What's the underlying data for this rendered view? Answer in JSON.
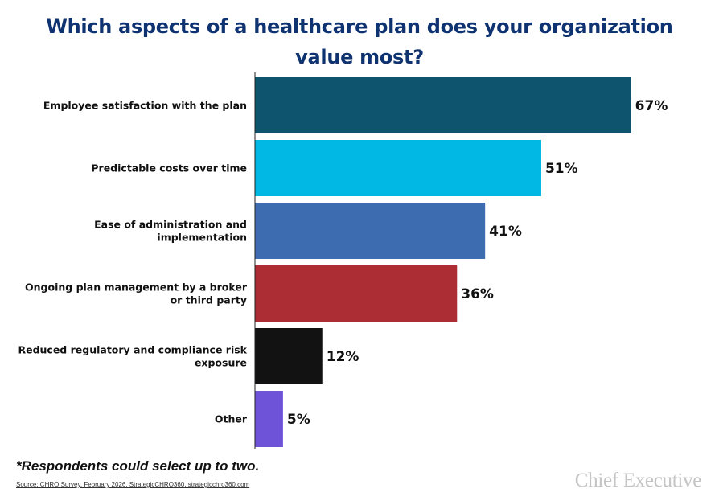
{
  "chart_data": {
    "type": "bar",
    "orientation": "horizontal",
    "title": "Which aspects of a healthcare plan does your organization value most?",
    "categories": [
      "Employee satisfaction with the plan",
      "Predictable costs over time",
      "Ease of administration and implementation",
      "Ongoing plan management by a broker or third party",
      "Reduced regulatory and compliance risk exposure",
      "Other"
    ],
    "category_lines": [
      [
        "Employee satisfaction with the plan"
      ],
      [
        "Predictable costs over time"
      ],
      [
        "Ease of administration and",
        "implementation"
      ],
      [
        "Ongoing plan management by a broker",
        "or third party"
      ],
      [
        "Reduced regulatory and compliance risk",
        "exposure"
      ],
      [
        "Other"
      ]
    ],
    "values": [
      67,
      51,
      41,
      36,
      12,
      5
    ],
    "value_labels": [
      "67%",
      "51%",
      "41%",
      "36%",
      "12%",
      "5%"
    ],
    "colors": [
      "#0e546e",
      "#00b8e3",
      "#3d6db0",
      "#ac2e34",
      "#121212",
      "#6e53d8"
    ],
    "xlim": [
      0,
      100
    ],
    "grid": false,
    "legend": "none"
  },
  "footnote": "*Respondents could select up to two.",
  "source": "Source: CHRO Survey, February 2026, StrategicCHRO360, strategicchro360.com",
  "logo_text": "Chief Executive"
}
